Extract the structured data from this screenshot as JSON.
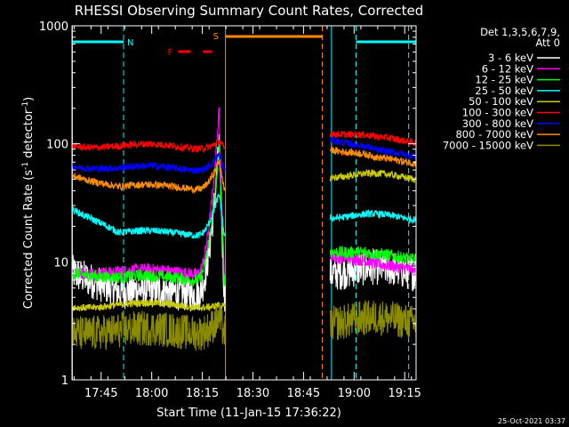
{
  "chart_data": {
    "type": "line",
    "title": "RHESSI Observing Summary Count Rates, Corrected",
    "xlabel": "Start Time (11-Jan-15 17:36:22)",
    "ylabel": "Corrected Count Rate (s",
    "ylabel_sup1": "-1",
    "ylabel_mid": " detector",
    "ylabel_sup2": "-1",
    "ylabel_end": ")",
    "yscale": "log",
    "ylim": [
      1,
      1000
    ],
    "xlim_minutes": [
      0,
      102
    ],
    "yticks": [
      {
        "v": 1,
        "label": "1"
      },
      {
        "v": 10,
        "label": "10"
      },
      {
        "v": 100,
        "label": "100"
      },
      {
        "v": 1000,
        "label": "1000"
      }
    ],
    "xticks": [
      {
        "m": 8.63,
        "label": "17:45"
      },
      {
        "m": 23.63,
        "label": "18:00"
      },
      {
        "m": 38.63,
        "label": "18:15"
      },
      {
        "m": 53.63,
        "label": "18:30"
      },
      {
        "m": 68.63,
        "label": "18:45"
      },
      {
        "m": 83.63,
        "label": "19:00"
      },
      {
        "m": 98.63,
        "label": "19:15"
      }
    ],
    "legend": {
      "placement": "right",
      "header1": "Det 1,3,5,6,7,9,",
      "header2": "Att 0"
    },
    "series": [
      {
        "name": "3 - 6 keV",
        "color": "#ffffff"
      },
      {
        "name": "6 - 12 keV",
        "color": "#ff00ff"
      },
      {
        "name": "12 - 25 keV",
        "color": "#00ff00"
      },
      {
        "name": "25 - 50 keV",
        "color": "#00ffff"
      },
      {
        "name": "50 - 100 keV",
        "color": "#cccc00"
      },
      {
        "name": "100 - 300 keV",
        "color": "#ff0000"
      },
      {
        "name": "300 - 800 keV",
        "color": "#0000ff"
      },
      {
        "name": "800 - 7000 keV",
        "color": "#ff8c00"
      },
      {
        "name": "7000 - 15000 keV",
        "color": "#8b8b00"
      }
    ],
    "levels": {
      "pre": [
        5.5,
        8.2,
        7.3,
        17.5,
        4.3,
        95,
        62,
        43,
        2.6
      ],
      "post": [
        8.5,
        9.0,
        11.0,
        24.0,
        53,
        108,
        83,
        72,
        3.2
      ],
      "pre_start": [
        8.5,
        8.5,
        8.5,
        29,
        4.3,
        100,
        67,
        56,
        2.6
      ],
      "post_start": [
        8.5,
        12.0,
        13.0,
        25.0,
        55,
        130,
        115,
        95,
        3.2
      ]
    },
    "peaks": {
      "minute": 43.6,
      "values": [
        100,
        200,
        100,
        40,
        4.5,
        110,
        85,
        75,
        3.5
      ]
    },
    "segments": [
      {
        "from": 0,
        "to": 45.5
      },
      {
        "from": 76.5,
        "to": 102
      }
    ],
    "annotations": {
      "night": [
        {
          "from": 0,
          "to": 15.3,
          "label": "N"
        },
        {
          "from": 84.2,
          "to": 102,
          "label": ""
        }
      ],
      "night_dashes_min": [
        15.3,
        84.2,
        99.8
      ],
      "night_solid_min": [
        0,
        76.8
      ],
      "saa": {
        "from": 45.5,
        "to": 74.2,
        "label": "S"
      },
      "flare": {
        "from": 31.5,
        "to": 41.5,
        "label": "F"
      }
    },
    "grid": false
  },
  "timestamp": "25-Oct-2021 03:37"
}
